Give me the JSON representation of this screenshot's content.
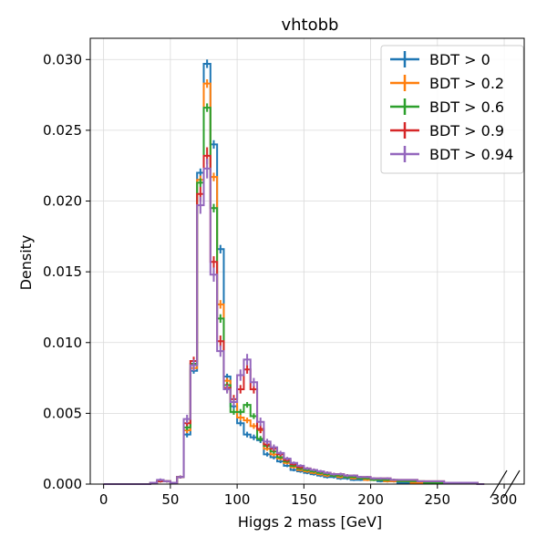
{
  "chart_data": {
    "type": "histogram-step",
    "title": "vhtobb",
    "xlabel": "Higgs 2 mass [GeV]",
    "ylabel": "Density",
    "xlim": [
      -10,
      315
    ],
    "ylim": [
      0,
      0.0315
    ],
    "xticks": [
      0,
      50,
      100,
      150,
      200,
      250,
      300
    ],
    "yticks": [
      0.0,
      0.005,
      0.01,
      0.015,
      0.02,
      0.025,
      0.03
    ],
    "ytick_format": 3,
    "grid": true,
    "legend_position": "top-right",
    "axis_break_marks": "bottom-right",
    "bin_edges": [
      0,
      5,
      10,
      15,
      20,
      25,
      30,
      35,
      40,
      45,
      50,
      55,
      60,
      65,
      70,
      75,
      80,
      85,
      90,
      95,
      100,
      105,
      110,
      115,
      120,
      125,
      130,
      135,
      140,
      145,
      150,
      155,
      160,
      165,
      170,
      175,
      180,
      185,
      190,
      195,
      200,
      205,
      210,
      215,
      220,
      225,
      230,
      235,
      240,
      245,
      250,
      255,
      260,
      265,
      270,
      275,
      280,
      285
    ],
    "series": [
      {
        "name": "BDT > 0",
        "color": "#1f77b4",
        "values": [
          0,
          0,
          0,
          0,
          0,
          0,
          0,
          0.0001,
          0.0002,
          0.0002,
          0.0001,
          0.0005,
          0.0035,
          0.008,
          0.022,
          0.0297,
          0.024,
          0.0166,
          0.0076,
          0.0055,
          0.0043,
          0.0035,
          0.0033,
          0.0031,
          0.0021,
          0.0019,
          0.0016,
          0.0013,
          0.001,
          0.0009,
          0.0008,
          0.0007,
          0.0006,
          0.0005,
          0.0005,
          0.0004,
          0.0004,
          0.0003,
          0.0003,
          0.0003,
          0.0003,
          0.0002,
          0.0002,
          0.0002,
          0.0001,
          0.0001,
          0.0001,
          0.0001,
          0.0001,
          0.0001,
          0.0001,
          0.0001,
          0.0001,
          0.0001,
          0.0001,
          0.0001,
          0
        ],
        "errors": [
          0,
          0,
          0,
          0,
          0,
          0,
          0,
          5e-05,
          8e-05,
          8e-05,
          5e-05,
          0.0001,
          0.0002,
          0.0002,
          0.0003,
          0.0003,
          0.0003,
          0.0003,
          0.0002,
          0.0002,
          0.0002,
          0.0002,
          0.0002,
          0.0002,
          0.00015,
          0.00015,
          0.00012,
          0.0001,
          0.0001,
          0.0001,
          0.0001,
          0.0001,
          0.0001,
          0.0001,
          0.0001,
          0.0001,
          0.0001,
          8e-05,
          8e-05,
          8e-05,
          8e-05,
          8e-05,
          8e-05,
          8e-05,
          5e-05,
          5e-05,
          5e-05,
          5e-05,
          5e-05,
          5e-05,
          5e-05,
          5e-05,
          5e-05,
          5e-05,
          5e-05,
          5e-05,
          0
        ]
      },
      {
        "name": "BDT > 0.2",
        "color": "#ff7f0e",
        "values": [
          0,
          0,
          0,
          0,
          0,
          0,
          0,
          0.0001,
          0.0002,
          0.0002,
          0.0001,
          0.0005,
          0.0038,
          0.0082,
          0.0215,
          0.0283,
          0.0217,
          0.0127,
          0.0073,
          0.0058,
          0.0047,
          0.0045,
          0.0041,
          0.0038,
          0.0025,
          0.0021,
          0.0018,
          0.0015,
          0.0012,
          0.001,
          0.0009,
          0.0008,
          0.0007,
          0.0006,
          0.0006,
          0.0005,
          0.0005,
          0.0004,
          0.0004,
          0.0003,
          0.0003,
          0.0003,
          0.0002,
          0.0002,
          0.0002,
          0.0002,
          0.0001,
          0.0001,
          0.0001,
          0.0001,
          0.0001,
          0.0001,
          0.0001,
          0.0001,
          0.0001,
          0.0001,
          0
        ],
        "errors": [
          0,
          0,
          0,
          0,
          0,
          0,
          0,
          5e-05,
          8e-05,
          8e-05,
          5e-05,
          0.0001,
          0.0002,
          0.0002,
          0.0003,
          0.0003,
          0.0003,
          0.0003,
          0.0002,
          0.0002,
          0.0002,
          0.0002,
          0.0002,
          0.0002,
          0.00015,
          0.00015,
          0.00012,
          0.0001,
          0.0001,
          0.0001,
          0.0001,
          0.0001,
          0.0001,
          0.0001,
          0.0001,
          0.0001,
          0.0001,
          8e-05,
          8e-05,
          8e-05,
          8e-05,
          8e-05,
          8e-05,
          8e-05,
          5e-05,
          5e-05,
          5e-05,
          5e-05,
          5e-05,
          5e-05,
          5e-05,
          5e-05,
          5e-05,
          5e-05,
          5e-05,
          5e-05,
          0
        ]
      },
      {
        "name": "BDT > 0.6",
        "color": "#2ca02c",
        "values": [
          0,
          0,
          0,
          0,
          0,
          0,
          0,
          0.0001,
          0.0002,
          0.0002,
          0.0001,
          0.0005,
          0.004,
          0.0085,
          0.0213,
          0.0266,
          0.0195,
          0.0117,
          0.007,
          0.0051,
          0.0051,
          0.0056,
          0.0048,
          0.0032,
          0.0027,
          0.0023,
          0.0019,
          0.0016,
          0.0013,
          0.0011,
          0.001,
          0.0009,
          0.0008,
          0.0007,
          0.0006,
          0.0006,
          0.0005,
          0.0005,
          0.0004,
          0.0004,
          0.0003,
          0.0003,
          0.0003,
          0.0003,
          0.0002,
          0.0002,
          0.0002,
          0.0002,
          0.0001,
          0.0001,
          0.0001,
          0.0001,
          0.0001,
          0.0001,
          0.0001,
          0.0001,
          0
        ],
        "errors": [
          0,
          0,
          0,
          0,
          0,
          0,
          0,
          5e-05,
          8e-05,
          8e-05,
          5e-05,
          0.0001,
          0.0002,
          0.0002,
          0.0003,
          0.0003,
          0.0003,
          0.0003,
          0.0002,
          0.0002,
          0.0002,
          0.0002,
          0.0002,
          0.0002,
          0.00015,
          0.00015,
          0.00012,
          0.0001,
          0.0001,
          0.0001,
          0.0001,
          0.0001,
          0.0001,
          0.0001,
          0.0001,
          0.0001,
          0.0001,
          8e-05,
          8e-05,
          8e-05,
          8e-05,
          8e-05,
          8e-05,
          8e-05,
          5e-05,
          5e-05,
          5e-05,
          5e-05,
          5e-05,
          5e-05,
          5e-05,
          5e-05,
          5e-05,
          5e-05,
          5e-05,
          5e-05,
          0
        ]
      },
      {
        "name": "BDT > 0.9",
        "color": "#d62728",
        "values": [
          0,
          0,
          0,
          0,
          0,
          0,
          0,
          0.0001,
          0.0002,
          0.0002,
          0.0001,
          0.0005,
          0.0043,
          0.0087,
          0.0205,
          0.0232,
          0.0157,
          0.0101,
          0.0068,
          0.006,
          0.0067,
          0.0081,
          0.0067,
          0.0039,
          0.0028,
          0.0025,
          0.0021,
          0.0017,
          0.0014,
          0.0012,
          0.0011,
          0.001,
          0.0009,
          0.0008,
          0.0007,
          0.0007,
          0.0006,
          0.0006,
          0.0005,
          0.0005,
          0.0004,
          0.0004,
          0.0004,
          0.0003,
          0.0003,
          0.0003,
          0.0003,
          0.0002,
          0.0002,
          0.0002,
          0.0002,
          0.0001,
          0.0001,
          0.0001,
          0.0001,
          0.0001,
          0
        ],
        "errors": [
          0,
          0,
          0,
          0,
          0,
          0,
          0,
          5e-05,
          8e-05,
          8e-05,
          5e-05,
          0.0001,
          0.0002,
          0.0003,
          0.0005,
          0.0006,
          0.0004,
          0.0004,
          0.0003,
          0.0003,
          0.0003,
          0.0003,
          0.0003,
          0.0003,
          0.0002,
          0.0002,
          0.00015,
          0.00012,
          0.0001,
          0.0001,
          0.0001,
          0.0001,
          0.0001,
          0.0001,
          0.0001,
          0.0001,
          0.0001,
          8e-05,
          8e-05,
          8e-05,
          8e-05,
          8e-05,
          8e-05,
          8e-05,
          5e-05,
          5e-05,
          5e-05,
          5e-05,
          5e-05,
          5e-05,
          5e-05,
          5e-05,
          5e-05,
          5e-05,
          5e-05,
          5e-05,
          0
        ]
      },
      {
        "name": "BDT > 0.94",
        "color": "#9467bd",
        "values": [
          0,
          0,
          0,
          0,
          0,
          0,
          0,
          0.0001,
          0.0003,
          0.0002,
          0.0001,
          0.0005,
          0.0046,
          0.0084,
          0.0197,
          0.0223,
          0.0148,
          0.0094,
          0.0067,
          0.0058,
          0.0077,
          0.0088,
          0.0072,
          0.0044,
          0.003,
          0.0026,
          0.0022,
          0.0018,
          0.0015,
          0.0013,
          0.0011,
          0.001,
          0.0009,
          0.0008,
          0.0007,
          0.0007,
          0.0006,
          0.0006,
          0.0005,
          0.0005,
          0.0004,
          0.0004,
          0.0004,
          0.0003,
          0.0003,
          0.0003,
          0.0003,
          0.0002,
          0.0002,
          0.0002,
          0.0002,
          0.0001,
          0.0001,
          0.0001,
          0.0001,
          0.0001,
          0
        ],
        "errors": [
          0,
          0,
          0,
          0,
          0,
          0,
          0,
          5e-05,
          0.0001,
          8e-05,
          5e-05,
          0.0001,
          0.0003,
          0.0004,
          0.0006,
          0.0007,
          0.0005,
          0.0004,
          0.0003,
          0.0003,
          0.0004,
          0.0004,
          0.0003,
          0.0003,
          0.0002,
          0.0002,
          0.00015,
          0.00012,
          0.0001,
          0.0001,
          0.0001,
          0.0001,
          0.0001,
          0.0001,
          0.0001,
          0.0001,
          0.0001,
          8e-05,
          8e-05,
          8e-05,
          8e-05,
          8e-05,
          8e-05,
          8e-05,
          5e-05,
          5e-05,
          5e-05,
          5e-05,
          5e-05,
          5e-05,
          5e-05,
          5e-05,
          5e-05,
          5e-05,
          5e-05,
          5e-05,
          0
        ]
      }
    ]
  }
}
